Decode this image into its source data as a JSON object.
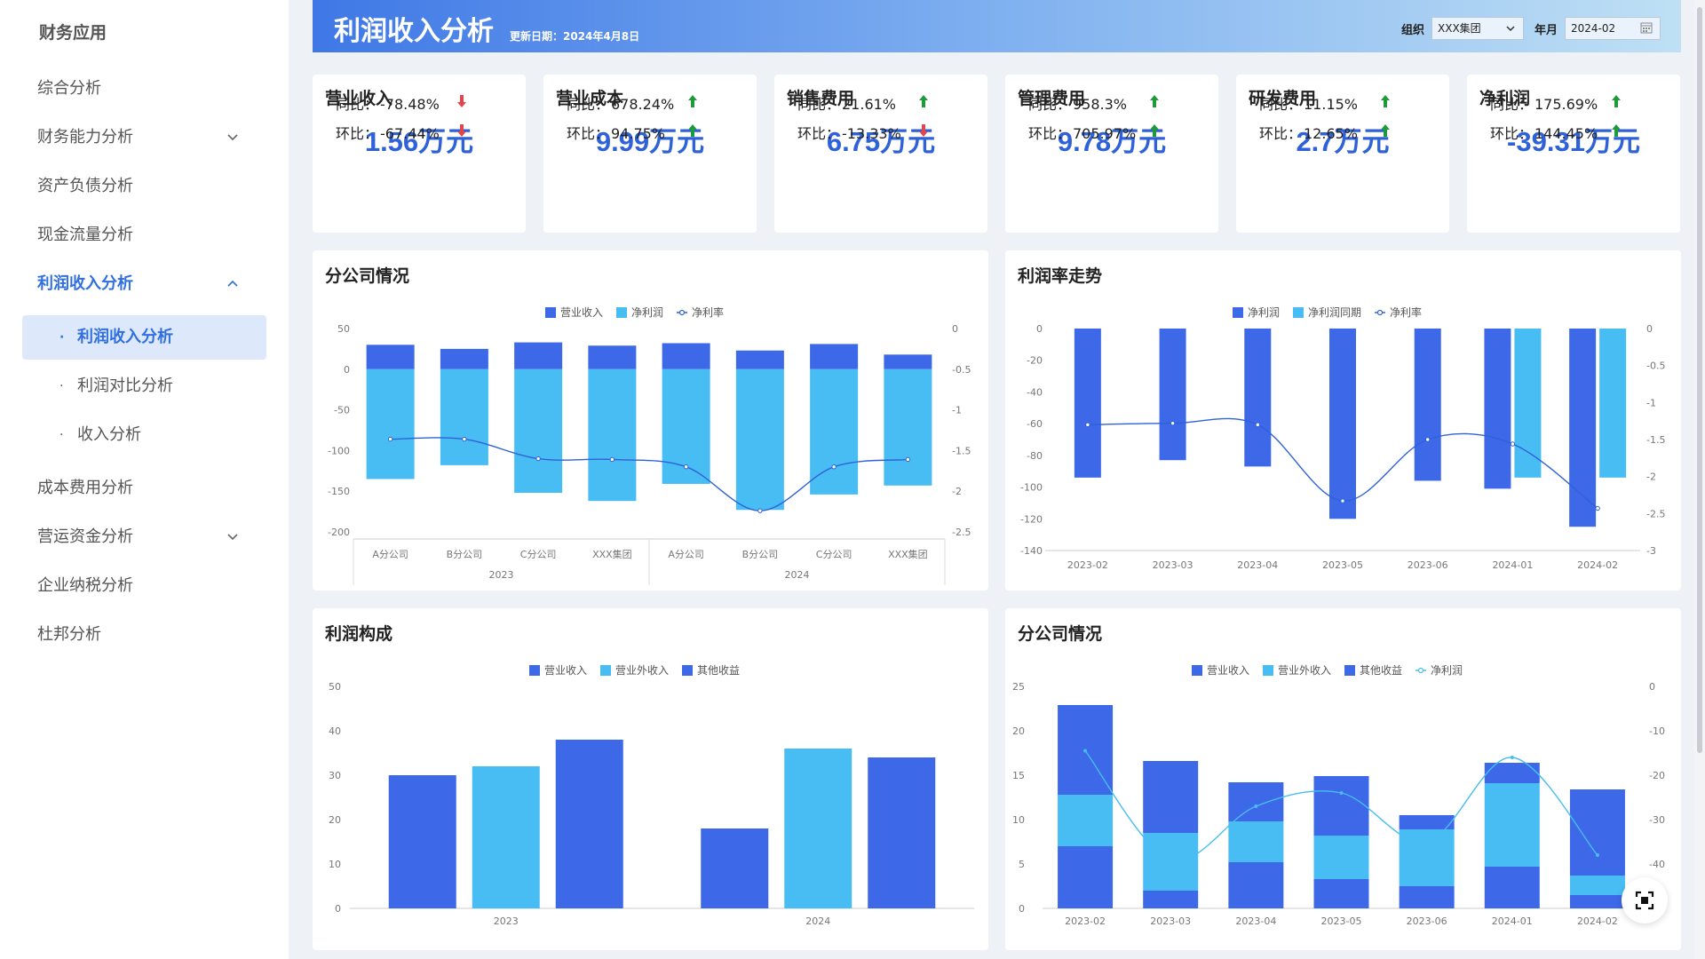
{
  "app": {
    "title": "财务应用"
  },
  "sidebar": {
    "items": [
      {
        "label": "综合分析",
        "chevron": ""
      },
      {
        "label": "财务能力分析",
        "chevron": "down"
      },
      {
        "label": "资产负债分析",
        "chevron": ""
      },
      {
        "label": "现金流量分析",
        "chevron": ""
      },
      {
        "label": "利润收入分析",
        "chevron": "up",
        "active": true
      },
      {
        "label": "成本费用分析",
        "chevron": ""
      },
      {
        "label": "营运资金分析",
        "chevron": "down"
      },
      {
        "label": "企业纳税分析",
        "chevron": ""
      },
      {
        "label": "杜邦分析",
        "chevron": ""
      }
    ],
    "sub_items": [
      {
        "label": "利润收入分析",
        "active": true
      },
      {
        "label": "利润对比分析"
      },
      {
        "label": "收入分析"
      }
    ]
  },
  "header": {
    "title": "利润收入分析",
    "update_date": "更新日期：2024年4月8日",
    "org_label": "组织",
    "org_value": "XXX集团",
    "month_label": "年月",
    "month_value": "2024-02"
  },
  "kpis": [
    {
      "name": "营业收入",
      "value": "1.56万元",
      "yoy_label": "同比：",
      "yoy": "-78.48%",
      "yoy_dir": "down",
      "mom_label": "环比：",
      "mom": "-67.44%",
      "mom_dir": "down"
    },
    {
      "name": "营业成本",
      "value": "9.99万元",
      "yoy_label": "同比：",
      "yoy": "678.24%",
      "yoy_dir": "up",
      "mom_label": "环比：",
      "mom": "94.75%",
      "mom_dir": "up"
    },
    {
      "name": "销售费用",
      "value": "6.75万元",
      "yoy_label": "同比：",
      "yoy": "21.61%",
      "yoy_dir": "up",
      "mom_label": "环比：",
      "mom": "-13.33%",
      "mom_dir": "down"
    },
    {
      "name": "管理费用",
      "value": "9.78万元",
      "yoy_label": "同比：",
      "yoy": "958.3%",
      "yoy_dir": "up",
      "mom_label": "环比：",
      "mom": "705.97%",
      "mom_dir": "up"
    },
    {
      "name": "研发费用",
      "value": "2.7万元",
      "yoy_label": "同比：",
      "yoy": "11.15%",
      "yoy_dir": "up",
      "mom_label": "环比：",
      "mom": "12.65%",
      "mom_dir": "up"
    },
    {
      "name": "净利润",
      "value": "-39.31万元",
      "yoy_label": "同比：",
      "yoy": "175.69%",
      "yoy_dir": "up",
      "mom_label": "环比：",
      "mom": "144.45%",
      "mom_dir": "up"
    }
  ],
  "colors": {
    "dark_blue": "#3d68e8",
    "light_blue": "#48bdf3",
    "line": "#2f62d8",
    "up": "#1e9a3a",
    "down": "#e0474c"
  },
  "panels": {
    "branch": {
      "title": "分公司情况"
    },
    "margin": {
      "title": "利润率走势"
    },
    "composition": {
      "title": "利润构成"
    },
    "branch2": {
      "title": "分公司情况"
    }
  },
  "chart_data": [
    {
      "type": "bar",
      "title": "分公司情况",
      "categories": [
        "A分公司",
        "B分公司",
        "C分公司",
        "XXX集团",
        "A分公司",
        "B分公司",
        "C分公司",
        "XXX集团"
      ],
      "groups": [
        "2023",
        "2024"
      ],
      "series": [
        {
          "name": "营业收入",
          "values": [
            30,
            25,
            33,
            29,
            32,
            23,
            31,
            18
          ],
          "axis": "left"
        },
        {
          "name": "净利润",
          "values": [
            -135,
            -118,
            -152,
            -162,
            -141,
            -173,
            -154,
            -143
          ],
          "axis": "left"
        },
        {
          "name": "净利率",
          "values": [
            -1.36,
            -1.36,
            -1.6,
            -1.61,
            -1.7,
            -2.24,
            -1.7,
            -1.61
          ],
          "axis": "right",
          "kind": "line"
        }
      ],
      "ylim": [
        -200,
        50
      ],
      "y2lim": [
        -2.5,
        0
      ],
      "yticks": [
        "50",
        "0",
        "-50",
        "-100",
        "-150",
        "-200"
      ],
      "y2ticks": [
        "0",
        "-0.5",
        "-1",
        "-1.5",
        "-2",
        "-2.5"
      ]
    },
    {
      "type": "bar",
      "title": "利润率走势",
      "categories": [
        "2023-02",
        "2023-03",
        "2023-04",
        "2023-05",
        "2023-06",
        "2024-01",
        "2024-02"
      ],
      "series": [
        {
          "name": "净利润",
          "values": [
            -94,
            -83,
            -87,
            -120,
            -96,
            -101,
            -125
          ],
          "axis": "left"
        },
        {
          "name": "净利润同期",
          "values": [
            null,
            null,
            null,
            null,
            null,
            -94,
            -94
          ],
          "axis": "left"
        },
        {
          "name": "净利率",
          "values": [
            -1.3,
            -1.28,
            -1.3,
            -2.33,
            -1.5,
            -1.56,
            -2.43
          ],
          "axis": "right",
          "kind": "line"
        }
      ],
      "ylim": [
        -140,
        0
      ],
      "y2lim": [
        -3,
        0
      ],
      "yticks": [
        "0",
        "-20",
        "-40",
        "-60",
        "-80",
        "-100",
        "-120",
        "-140"
      ],
      "y2ticks": [
        "0",
        "-0.5",
        "-1",
        "-1.5",
        "-2",
        "-2.5",
        "-3"
      ]
    },
    {
      "type": "bar",
      "title": "利润构成",
      "categories": [
        "2023",
        "2024"
      ],
      "series": [
        {
          "name": "营业收入",
          "values": [
            30,
            18
          ]
        },
        {
          "name": "营业外收入",
          "values": [
            32,
            36
          ]
        },
        {
          "name": "其他收益",
          "values": [
            38,
            34
          ]
        }
      ],
      "ylim": [
        0,
        50
      ],
      "yticks": [
        "0",
        "10",
        "20",
        "30",
        "40",
        "50"
      ]
    },
    {
      "type": "bar",
      "title": "分公司情况",
      "categories": [
        "2023-02",
        "2023-03",
        "2023-04",
        "2023-05",
        "2023-06",
        "2024-01",
        "2024-02"
      ],
      "series": [
        {
          "name": "营业收入",
          "values": [
            7,
            2,
            5.2,
            3.3,
            2.5,
            4.7,
            1.5
          ],
          "stack": true
        },
        {
          "name": "营业外收入",
          "values": [
            5.8,
            6.5,
            4.6,
            4.9,
            6.4,
            9.4,
            2.2
          ],
          "stack": true
        },
        {
          "name": "其他收益",
          "values": [
            10.1,
            8.1,
            4.4,
            6.7,
            1.6,
            2.3,
            9.7
          ],
          "stack": true
        },
        {
          "name": "净利润",
          "values": [
            -14.5,
            -39,
            -27,
            -24,
            -35,
            -16,
            -38
          ],
          "axis": "right",
          "kind": "line"
        }
      ],
      "ylim": [
        0,
        25
      ],
      "y2lim": [
        -50,
        0
      ],
      "yticks": [
        "0",
        "5",
        "10",
        "15",
        "20",
        "25"
      ],
      "y2ticks": [
        "0",
        "-10",
        "-20",
        "-30",
        "-40"
      ]
    }
  ]
}
